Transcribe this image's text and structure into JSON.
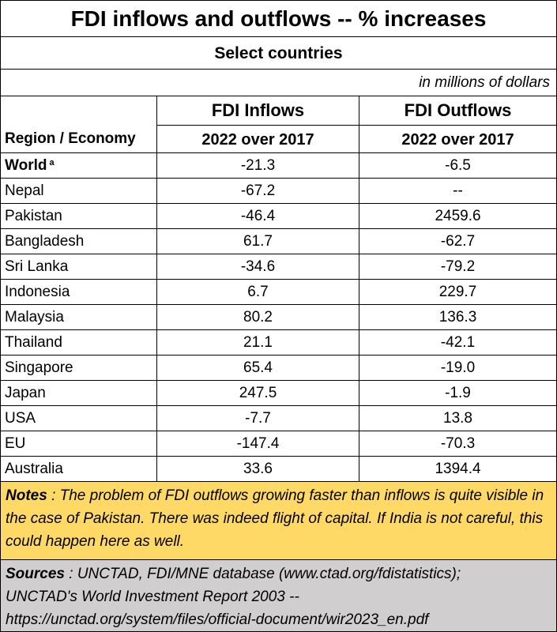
{
  "title": "FDI inflows and outflows --  % increases",
  "subtitle": "Select countries",
  "units": "in millions of dollars",
  "headers": {
    "region": "Region  /  Economy",
    "inflows": "FDI Inflows",
    "outflows": "FDI Outflows",
    "inflows_period": "2022 over 2017",
    "outflows_period": "2022 over 2017"
  },
  "rows": [
    {
      "name": "World",
      "sup": "a",
      "inflow": "-21.3",
      "outflow": "-6.5"
    },
    {
      "name": "Nepal",
      "inflow": "-67.2",
      "outflow": "--"
    },
    {
      "name": "Pakistan",
      "inflow": "-46.4",
      "outflow": "2459.6"
    },
    {
      "name": "Bangladesh",
      "inflow": "61.7",
      "outflow": "-62.7"
    },
    {
      "name": "Sri Lanka",
      "inflow": "-34.6",
      "outflow": "-79.2"
    },
    {
      "name": "Indonesia",
      "inflow": "6.7",
      "outflow": "229.7"
    },
    {
      "name": "Malaysia",
      "inflow": "80.2",
      "outflow": "136.3"
    },
    {
      "name": "Thailand",
      "inflow": "21.1",
      "outflow": "-42.1"
    },
    {
      "name": "Singapore",
      "inflow": "65.4",
      "outflow": "-19.0"
    },
    {
      "name": "Japan",
      "inflow": "247.5",
      "outflow": "-1.9"
    },
    {
      "name": "USA",
      "inflow": "-7.7",
      "outflow": "13.8"
    },
    {
      "name": "EU",
      "inflow": "-147.4",
      "outflow": "-70.3"
    },
    {
      "name": "Australia",
      "inflow": "33.6",
      "outflow": "1394.4"
    }
  ],
  "notes": {
    "label": "Notes",
    "text": " : The problem of FDI outflows growing faster than inflows is quite visible in the case of Pakistan.  There was indeed flight of capital.  If India is not careful, this could happen here as well."
  },
  "sources": {
    "label": "Sources",
    "line1": " : UNCTAD, FDI/MNE database (www.ctad.org/fdistatistics);",
    "line2": "UNCTAD's World Investment Report 2003 --",
    "line3": "https://unctad.org/system/files/official-document/wir2023_en.pdf"
  },
  "colors": {
    "notes_bg": "#ffd966",
    "sources_bg": "#d0cece"
  }
}
